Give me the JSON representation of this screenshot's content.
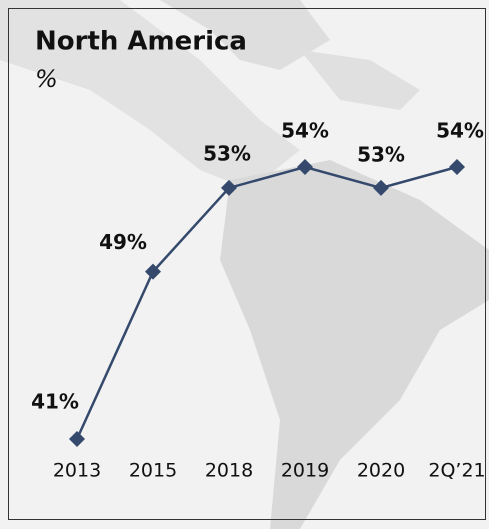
{
  "chart_data": {
    "type": "line",
    "title": "North America",
    "subtitle": "%",
    "categories": [
      "2013",
      "2015",
      "2018",
      "2019",
      "2020",
      "2Q’21"
    ],
    "series": [
      {
        "color": "#34496b",
        "values": [
          41,
          49,
          53,
          54,
          53,
          54
        ],
        "value_labels": [
          "41%",
          "49%",
          "53%",
          "54%",
          "53%",
          "54%"
        ]
      }
    ]
  }
}
